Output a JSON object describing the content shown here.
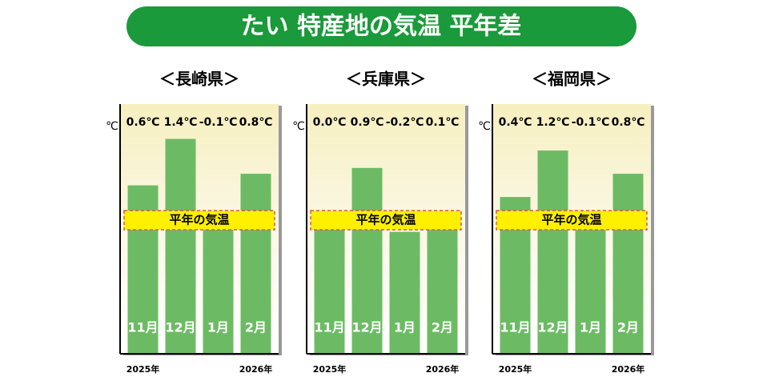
{
  "title": "たい 特産地の気温 平年差",
  "chart_data": [
    {
      "type": "bar",
      "title": "＜長崎県＞",
      "unit": "℃",
      "baseline_label": "平年の気温",
      "categories": [
        "11月",
        "12月",
        "1月",
        "2月"
      ],
      "start_label": "2025年",
      "end_label": "2026年",
      "values": [
        0.6,
        1.4,
        -0.1,
        0.8
      ],
      "value_labels": [
        "0.6℃",
        "1.4℃",
        "-0.1℃",
        "0.8℃"
      ],
      "color": "#6cbb64",
      "ylim": [
        -2.3,
        2.0
      ]
    },
    {
      "type": "bar",
      "title": "＜兵庫県＞",
      "unit": "℃",
      "baseline_label": "平年の気温",
      "categories": [
        "11月",
        "12月",
        "1月",
        "2月"
      ],
      "start_label": "2025年",
      "end_label": "2026年",
      "values": [
        0.0,
        0.9,
        -0.2,
        0.1
      ],
      "value_labels": [
        "0.0℃",
        "0.9℃",
        "-0.2℃",
        "0.1℃"
      ],
      "color": "#6cbb64",
      "ylim": [
        -2.3,
        2.0
      ]
    },
    {
      "type": "bar",
      "title": "＜福岡県＞",
      "unit": "℃",
      "baseline_label": "平年の気温",
      "categories": [
        "11月",
        "12月",
        "1月",
        "2月"
      ],
      "start_label": "2025年",
      "end_label": "2026年",
      "values": [
        0.4,
        1.2,
        -0.1,
        0.8
      ],
      "value_labels": [
        "0.4℃",
        "1.2℃",
        "-0.1℃",
        "0.8℃"
      ],
      "color": "#6cbb64",
      "ylim": [
        -2.3,
        2.0
      ]
    }
  ]
}
